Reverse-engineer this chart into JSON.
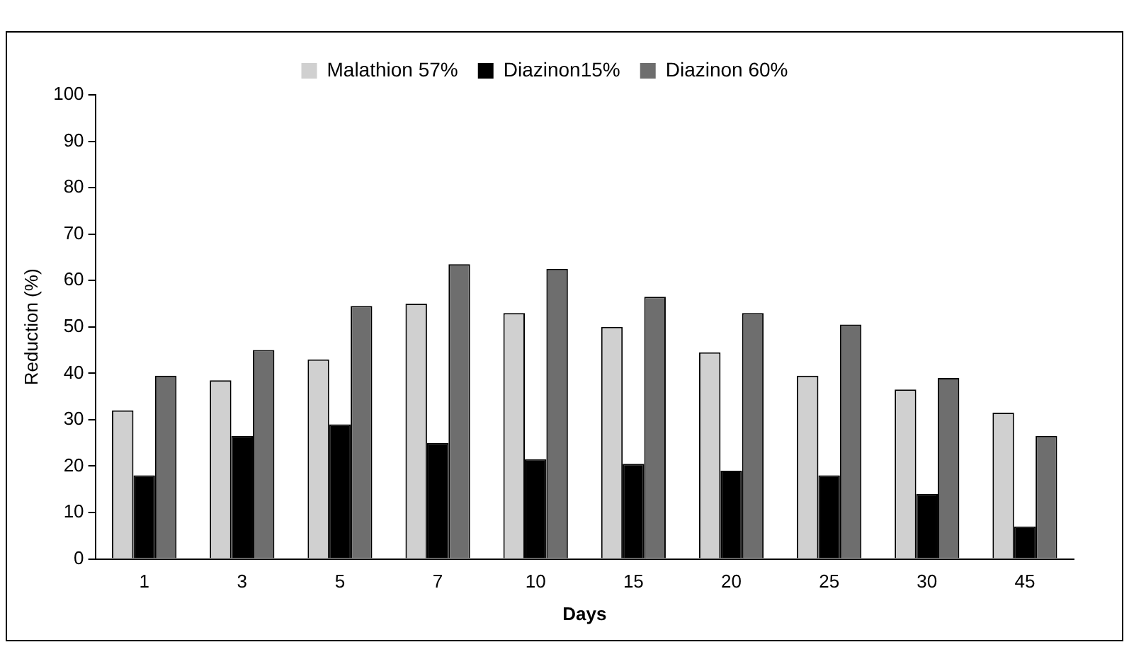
{
  "chart_data": {
    "type": "bar",
    "xlabel": "Days",
    "ylabel": "Reduction (%)",
    "categories": [
      "1",
      "3",
      "5",
      "7",
      "10",
      "15",
      "20",
      "25",
      "30",
      "45"
    ],
    "series": [
      {
        "name": "Malathion 57%",
        "color": "#d0d0d0",
        "values": [
          32,
          38.5,
          43,
          55,
          53,
          50,
          44.5,
          39.5,
          36.5,
          31.5
        ]
      },
      {
        "name": "Diazinon15%",
        "color": "#000000",
        "values": [
          18,
          26.5,
          29,
          25,
          21.5,
          20.5,
          19,
          18,
          14,
          7
        ]
      },
      {
        "name": "Diazinon 60%",
        "color": "#6e6e6e",
        "values": [
          39.5,
          45,
          54.5,
          63.5,
          62.5,
          56.5,
          53,
          50.5,
          39,
          26.5
        ]
      }
    ],
    "ylim": [
      0,
      100
    ],
    "yticks": [
      0,
      10,
      20,
      30,
      40,
      50,
      60,
      70,
      80,
      90,
      100
    ],
    "grid": false,
    "legend": "top"
  }
}
